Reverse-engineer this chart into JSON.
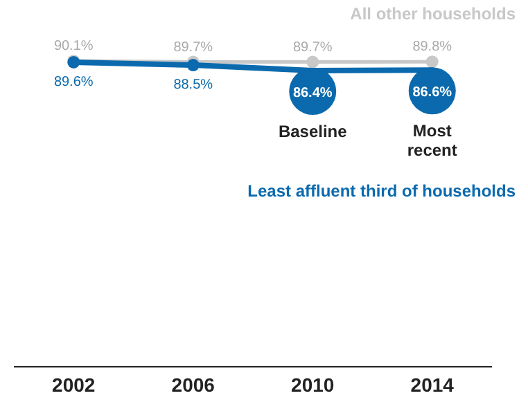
{
  "chart_data": {
    "type": "line",
    "x": [
      2002,
      2006,
      2010,
      2014
    ],
    "xlim": [
      2000,
      2016
    ],
    "xticks": [
      2002,
      2006,
      2010,
      2014
    ],
    "series": [
      {
        "name": "All other households",
        "color": "#c8c8c8",
        "values": [
          90.1,
          89.7,
          89.7,
          89.8
        ],
        "value_labels": [
          "90.1%",
          "89.7%",
          "89.7%",
          "89.8%"
        ]
      },
      {
        "name": "Least affluent third of households",
        "color": "#0b6aae",
        "values": [
          89.6,
          88.5,
          86.4,
          86.6
        ],
        "value_labels": [
          "89.6%",
          "88.5%",
          "86.4%",
          "86.6%"
        ]
      }
    ],
    "annotations": [
      "Baseline",
      "Most recent"
    ],
    "grid": false,
    "marker": "circle",
    "line_style": "solid"
  }
}
